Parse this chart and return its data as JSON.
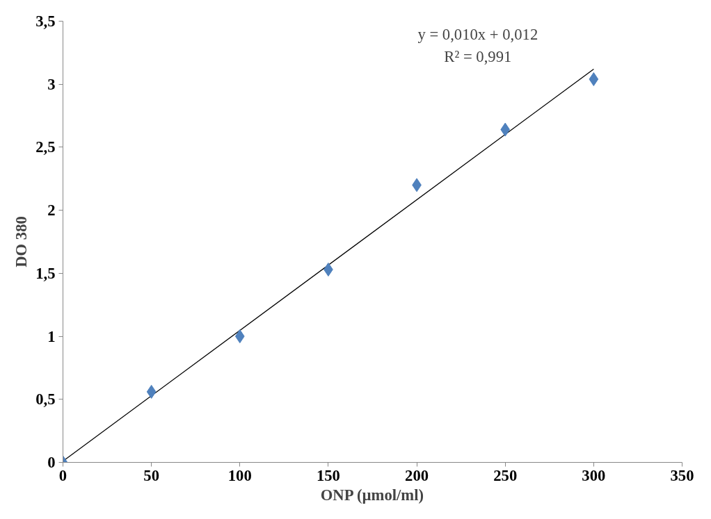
{
  "chart_data": {
    "type": "scatter",
    "xlabel": "ONP (µmol/ml)",
    "ylabel": "DO 380",
    "x": [
      0,
      50,
      100,
      150,
      200,
      250,
      300
    ],
    "series": [
      {
        "type": "scatter",
        "color": "#4f81bd",
        "marker": "diamond",
        "values": [
          0,
          0.56,
          1.0,
          1.53,
          2.2,
          2.64,
          3.04
        ]
      },
      {
        "type": "line",
        "color": "#000000",
        "x": [
          0,
          300
        ],
        "values": [
          0.01,
          3.12
        ]
      }
    ],
    "annotations": [
      "y = 0,010x + 0,012",
      "R² = 0,991"
    ],
    "xlim": [
      0,
      350
    ],
    "xticks": [
      0,
      50,
      100,
      150,
      200,
      250,
      300,
      350
    ],
    "ylim": [
      0,
      3.5
    ],
    "yticks": [
      0,
      {
        "value": 0.5,
        "label": "0,5"
      },
      1,
      {
        "value": 1.5,
        "label": "1,5"
      },
      2,
      {
        "value": 2.5,
        "label": "2,5"
      },
      3,
      {
        "value": 3.5,
        "label": "3,5"
      }
    ],
    "grid": false
  }
}
